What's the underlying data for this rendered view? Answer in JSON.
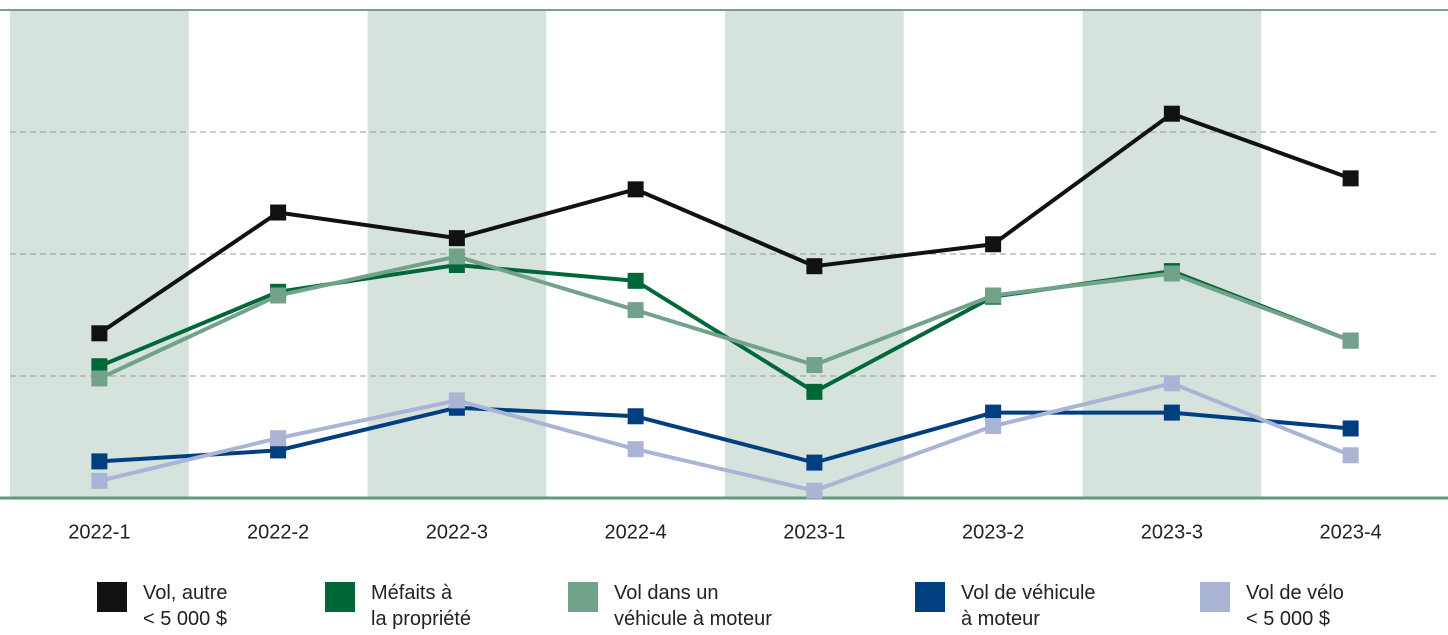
{
  "chart_data": {
    "type": "line",
    "categories": [
      "2022-1",
      "2022-2",
      "2022-3",
      "2022-4",
      "2023-1",
      "2023-2",
      "2023-3",
      "2023-4"
    ],
    "ylim": [
      0,
      4
    ],
    "yticks": [
      1,
      2,
      3
    ],
    "grid": true,
    "legend": "bottom",
    "series": [
      {
        "name": "Vol, autre\n< 5 000 $",
        "color": "#111111",
        "values": [
          1.35,
          2.34,
          2.13,
          2.53,
          1.9,
          2.08,
          3.15,
          2.62
        ]
      },
      {
        "name": "Méfaits à\nla propriété",
        "color": "#006838",
        "values": [
          1.08,
          1.69,
          1.91,
          1.78,
          0.87,
          1.65,
          1.86,
          1.29
        ]
      },
      {
        "name": "Vol dans un\nvéhicule à moteur",
        "color": "#72a38a",
        "values": [
          0.98,
          1.66,
          1.98,
          1.54,
          1.09,
          1.66,
          1.84,
          1.29
        ]
      },
      {
        "name": "Vol de véhicule\nà moteur",
        "color": "#003f7f",
        "values": [
          0.3,
          0.39,
          0.74,
          0.67,
          0.29,
          0.7,
          0.7,
          0.57
        ]
      },
      {
        "name": "Vol de vélo\n< 5 000 $",
        "color": "#aab4d4",
        "values": [
          0.14,
          0.49,
          0.8,
          0.4,
          0.06,
          0.59,
          0.94,
          0.35
        ]
      }
    ]
  }
}
